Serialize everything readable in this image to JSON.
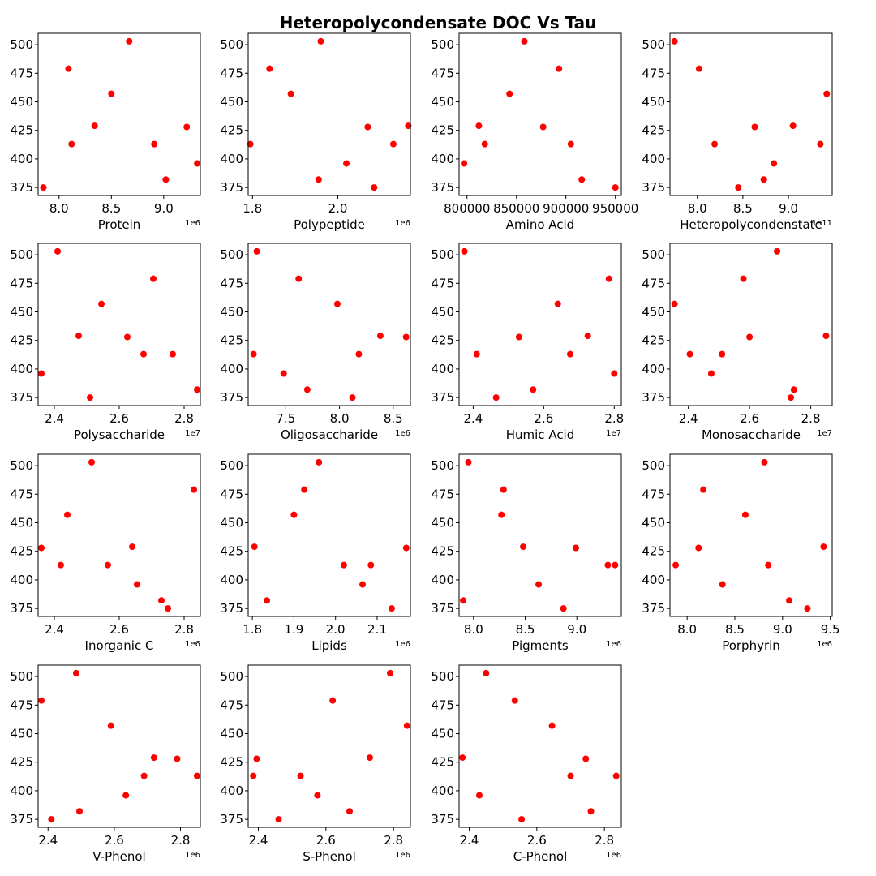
{
  "title": "Heteropolycondensate DOC Vs Tau",
  "colors": {
    "marker": "#ff0000",
    "axes": "#000000",
    "background": "#ffffff"
  },
  "chart_data": [
    {
      "type": "scatter",
      "xlabel": "Protein",
      "ylabel": "",
      "grid": false,
      "x_offset_text": "1e6",
      "x_ticks": [
        8.0,
        8.5,
        9.0
      ],
      "x_tick_labels": [
        "8.0",
        "8.5",
        "9.0"
      ],
      "xlim": [
        7.8,
        9.35
      ],
      "y_ticks": [
        375,
        400,
        425,
        450,
        475,
        500
      ],
      "ylim": [
        368,
        510
      ],
      "points": [
        [
          7.85,
          375
        ],
        [
          8.09,
          479
        ],
        [
          8.12,
          413
        ],
        [
          8.34,
          429
        ],
        [
          8.5,
          457
        ],
        [
          8.67,
          503
        ],
        [
          8.91,
          413
        ],
        [
          9.02,
          382
        ],
        [
          9.22,
          428
        ],
        [
          9.32,
          396
        ]
      ]
    },
    {
      "type": "scatter",
      "xlabel": "Polypeptide",
      "ylabel": "",
      "grid": false,
      "x_offset_text": "1e6",
      "x_ticks": [
        1.8,
        2.0
      ],
      "x_tick_labels": [
        "1.8",
        "2.0"
      ],
      "xlim": [
        1.79,
        2.17
      ],
      "y_ticks": [
        375,
        400,
        425,
        450,
        475,
        500
      ],
      "ylim": [
        368,
        510
      ],
      "points": [
        [
          1.795,
          413
        ],
        [
          1.84,
          479
        ],
        [
          1.89,
          457
        ],
        [
          1.955,
          382
        ],
        [
          1.96,
          503
        ],
        [
          2.02,
          396
        ],
        [
          2.07,
          428
        ],
        [
          2.085,
          375
        ],
        [
          2.13,
          413
        ],
        [
          2.165,
          429
        ]
      ]
    },
    {
      "type": "scatter",
      "xlabel": "Amino Acid",
      "ylabel": "",
      "grid": false,
      "x_offset_text": "",
      "x_ticks": [
        800000,
        850000,
        900000,
        950000
      ],
      "x_tick_labels": [
        "800000",
        "850000",
        "900000",
        "950000"
      ],
      "xlim": [
        792000,
        956000
      ],
      "y_ticks": [
        375,
        400,
        425,
        450,
        475,
        500
      ],
      "ylim": [
        368,
        510
      ],
      "points": [
        [
          797000,
          396
        ],
        [
          812000,
          429
        ],
        [
          818000,
          413
        ],
        [
          843000,
          457
        ],
        [
          858000,
          503
        ],
        [
          877000,
          428
        ],
        [
          893000,
          479
        ],
        [
          905000,
          413
        ],
        [
          916000,
          382
        ],
        [
          950000,
          375
        ]
      ]
    },
    {
      "type": "scatter",
      "xlabel": "Heteropolycondenstate",
      "ylabel": "",
      "grid": false,
      "x_offset_text": "1e11",
      "x_ticks": [
        8.0,
        8.5,
        9.0
      ],
      "x_tick_labels": [
        "8.0",
        "8.5",
        "9.0"
      ],
      "xlim": [
        7.7,
        9.48
      ],
      "y_ticks": [
        375,
        400,
        425,
        450,
        475,
        500
      ],
      "ylim": [
        368,
        510
      ],
      "points": [
        [
          7.75,
          503
        ],
        [
          8.02,
          479
        ],
        [
          8.19,
          413
        ],
        [
          8.45,
          375
        ],
        [
          8.63,
          428
        ],
        [
          8.73,
          382
        ],
        [
          8.84,
          396
        ],
        [
          9.05,
          429
        ],
        [
          9.35,
          413
        ],
        [
          9.42,
          457
        ]
      ]
    },
    {
      "type": "scatter",
      "xlabel": "Polysaccharide",
      "ylabel": "",
      "grid": false,
      "x_offset_text": "1e7",
      "x_ticks": [
        2.4,
        2.6,
        2.8
      ],
      "x_tick_labels": [
        "2.4",
        "2.6",
        "2.8"
      ],
      "xlim": [
        2.35,
        2.85
      ],
      "y_ticks": [
        375,
        400,
        425,
        450,
        475,
        500
      ],
      "ylim": [
        368,
        510
      ],
      "points": [
        [
          2.36,
          396
        ],
        [
          2.41,
          503
        ],
        [
          2.475,
          429
        ],
        [
          2.51,
          375
        ],
        [
          2.545,
          457
        ],
        [
          2.625,
          428
        ],
        [
          2.675,
          413
        ],
        [
          2.705,
          479
        ],
        [
          2.765,
          413
        ],
        [
          2.84,
          382
        ]
      ]
    },
    {
      "type": "scatter",
      "xlabel": "Oligosaccharide",
      "ylabel": "",
      "grid": false,
      "x_offset_text": "1e6",
      "x_ticks": [
        7.5,
        8.0,
        8.5
      ],
      "x_tick_labels": [
        "7.5",
        "8.0",
        "8.5"
      ],
      "xlim": [
        7.15,
        8.66
      ],
      "y_ticks": [
        375,
        400,
        425,
        450,
        475,
        500
      ],
      "ylim": [
        368,
        510
      ],
      "points": [
        [
          7.2,
          413
        ],
        [
          7.23,
          503
        ],
        [
          7.48,
          396
        ],
        [
          7.62,
          479
        ],
        [
          7.7,
          382
        ],
        [
          7.98,
          457
        ],
        [
          8.12,
          375
        ],
        [
          8.18,
          413
        ],
        [
          8.38,
          429
        ],
        [
          8.62,
          428
        ]
      ]
    },
    {
      "type": "scatter",
      "xlabel": "Humic Acid",
      "ylabel": "",
      "grid": false,
      "x_offset_text": "1e7",
      "x_ticks": [
        2.4,
        2.6,
        2.8
      ],
      "x_tick_labels": [
        "2.4",
        "2.6",
        "2.8"
      ],
      "xlim": [
        2.36,
        2.82
      ],
      "y_ticks": [
        375,
        400,
        425,
        450,
        475,
        500
      ],
      "ylim": [
        368,
        510
      ],
      "points": [
        [
          2.375,
          503
        ],
        [
          2.41,
          413
        ],
        [
          2.465,
          375
        ],
        [
          2.53,
          428
        ],
        [
          2.57,
          382
        ],
        [
          2.64,
          457
        ],
        [
          2.675,
          413
        ],
        [
          2.725,
          429
        ],
        [
          2.785,
          479
        ],
        [
          2.8,
          396
        ]
      ]
    },
    {
      "type": "scatter",
      "xlabel": "Monosaccharide",
      "ylabel": "",
      "grid": false,
      "x_offset_text": "1e7",
      "x_ticks": [
        2.4,
        2.6,
        2.8
      ],
      "x_tick_labels": [
        "2.4",
        "2.6",
        "2.8"
      ],
      "xlim": [
        2.34,
        2.87
      ],
      "y_ticks": [
        375,
        400,
        425,
        450,
        475,
        500
      ],
      "ylim": [
        368,
        510
      ],
      "points": [
        [
          2.355,
          457
        ],
        [
          2.405,
          413
        ],
        [
          2.475,
          396
        ],
        [
          2.51,
          413
        ],
        [
          2.58,
          479
        ],
        [
          2.6,
          428
        ],
        [
          2.69,
          503
        ],
        [
          2.735,
          375
        ],
        [
          2.745,
          382
        ],
        [
          2.85,
          429
        ]
      ]
    },
    {
      "type": "scatter",
      "xlabel": "Inorganic C",
      "ylabel": "",
      "grid": false,
      "x_offset_text": "1e6",
      "x_ticks": [
        2.4,
        2.6,
        2.8
      ],
      "x_tick_labels": [
        "2.4",
        "2.6",
        "2.8"
      ],
      "xlim": [
        2.35,
        2.85
      ],
      "y_ticks": [
        375,
        400,
        425,
        450,
        475,
        500
      ],
      "ylim": [
        368,
        510
      ],
      "points": [
        [
          2.36,
          428
        ],
        [
          2.42,
          413
        ],
        [
          2.44,
          457
        ],
        [
          2.515,
          503
        ],
        [
          2.565,
          413
        ],
        [
          2.64,
          429
        ],
        [
          2.655,
          396
        ],
        [
          2.73,
          382
        ],
        [
          2.75,
          375
        ],
        [
          2.83,
          479
        ]
      ]
    },
    {
      "type": "scatter",
      "xlabel": "Lipids",
      "ylabel": "",
      "grid": false,
      "x_offset_text": "1e6",
      "x_ticks": [
        1.8,
        1.9,
        2.0,
        2.1
      ],
      "x_tick_labels": [
        "1.8",
        "1.9",
        "2.0",
        "2.1"
      ],
      "xlim": [
        1.79,
        2.18
      ],
      "y_ticks": [
        375,
        400,
        425,
        450,
        475,
        500
      ],
      "ylim": [
        368,
        510
      ],
      "points": [
        [
          1.805,
          429
        ],
        [
          1.835,
          382
        ],
        [
          1.9,
          457
        ],
        [
          1.925,
          479
        ],
        [
          1.96,
          503
        ],
        [
          2.02,
          413
        ],
        [
          2.065,
          396
        ],
        [
          2.085,
          413
        ],
        [
          2.135,
          375
        ],
        [
          2.17,
          428
        ]
      ]
    },
    {
      "type": "scatter",
      "xlabel": "Pigments",
      "ylabel": "",
      "grid": false,
      "x_offset_text": "1e6",
      "x_ticks": [
        8.0,
        8.5,
        9.0
      ],
      "x_tick_labels": [
        "8.0",
        "8.5",
        "9.0"
      ],
      "xlim": [
        7.86,
        9.43
      ],
      "y_ticks": [
        375,
        400,
        425,
        450,
        475,
        500
      ],
      "ylim": [
        368,
        510
      ],
      "points": [
        [
          7.9,
          382
        ],
        [
          7.95,
          503
        ],
        [
          8.27,
          457
        ],
        [
          8.29,
          479
        ],
        [
          8.48,
          429
        ],
        [
          8.63,
          396
        ],
        [
          8.87,
          375
        ],
        [
          8.99,
          428
        ],
        [
          9.3,
          413
        ],
        [
          9.37,
          413
        ]
      ]
    },
    {
      "type": "scatter",
      "xlabel": "Porphyrin",
      "ylabel": "",
      "grid": false,
      "x_offset_text": "1e6",
      "x_ticks": [
        8.0,
        8.5,
        9.0,
        9.5
      ],
      "x_tick_labels": [
        "8.0",
        "8.5",
        "9.0",
        "9.5"
      ],
      "xlim": [
        7.82,
        9.52
      ],
      "y_ticks": [
        375,
        400,
        425,
        450,
        475,
        500
      ],
      "ylim": [
        368,
        510
      ],
      "points": [
        [
          7.88,
          413
        ],
        [
          8.12,
          428
        ],
        [
          8.17,
          479
        ],
        [
          8.37,
          396
        ],
        [
          8.61,
          457
        ],
        [
          8.81,
          503
        ],
        [
          8.85,
          413
        ],
        [
          9.07,
          382
        ],
        [
          9.26,
          375
        ],
        [
          9.43,
          429
        ]
      ]
    },
    {
      "type": "scatter",
      "xlabel": "V-Phenol",
      "ylabel": "",
      "grid": false,
      "x_offset_text": "1e6",
      "x_ticks": [
        2.4,
        2.6,
        2.8
      ],
      "x_tick_labels": [
        "2.4",
        "2.6",
        "2.8"
      ],
      "xlim": [
        2.37,
        2.86
      ],
      "y_ticks": [
        375,
        400,
        425,
        450,
        475,
        500
      ],
      "ylim": [
        368,
        510
      ],
      "points": [
        [
          2.38,
          479
        ],
        [
          2.41,
          375
        ],
        [
          2.485,
          503
        ],
        [
          2.495,
          382
        ],
        [
          2.59,
          457
        ],
        [
          2.635,
          396
        ],
        [
          2.69,
          413
        ],
        [
          2.72,
          429
        ],
        [
          2.79,
          428
        ],
        [
          2.85,
          413
        ]
      ]
    },
    {
      "type": "scatter",
      "xlabel": "S-Phenol",
      "ylabel": "",
      "grid": false,
      "x_offset_text": "1e6",
      "x_ticks": [
        2.4,
        2.6,
        2.8
      ],
      "x_tick_labels": [
        "2.4",
        "2.6",
        "2.8"
      ],
      "xlim": [
        2.37,
        2.85
      ],
      "y_ticks": [
        375,
        400,
        425,
        450,
        475,
        500
      ],
      "ylim": [
        368,
        510
      ],
      "points": [
        [
          2.385,
          413
        ],
        [
          2.395,
          428
        ],
        [
          2.46,
          375
        ],
        [
          2.525,
          413
        ],
        [
          2.575,
          396
        ],
        [
          2.62,
          479
        ],
        [
          2.67,
          382
        ],
        [
          2.73,
          429
        ],
        [
          2.79,
          503
        ],
        [
          2.84,
          457
        ]
      ]
    },
    {
      "type": "scatter",
      "xlabel": "C-Phenol",
      "ylabel": "",
      "grid": false,
      "x_offset_text": "1e6",
      "x_ticks": [
        2.4,
        2.6,
        2.8
      ],
      "x_tick_labels": [
        "2.4",
        "2.6",
        "2.8"
      ],
      "xlim": [
        2.37,
        2.85
      ],
      "y_ticks": [
        375,
        400,
        425,
        450,
        475,
        500
      ],
      "ylim": [
        368,
        510
      ],
      "points": [
        [
          2.38,
          429
        ],
        [
          2.43,
          396
        ],
        [
          2.45,
          503
        ],
        [
          2.535,
          479
        ],
        [
          2.555,
          375
        ],
        [
          2.645,
          457
        ],
        [
          2.7,
          413
        ],
        [
          2.745,
          428
        ],
        [
          2.76,
          382
        ],
        [
          2.835,
          413
        ]
      ]
    }
  ]
}
